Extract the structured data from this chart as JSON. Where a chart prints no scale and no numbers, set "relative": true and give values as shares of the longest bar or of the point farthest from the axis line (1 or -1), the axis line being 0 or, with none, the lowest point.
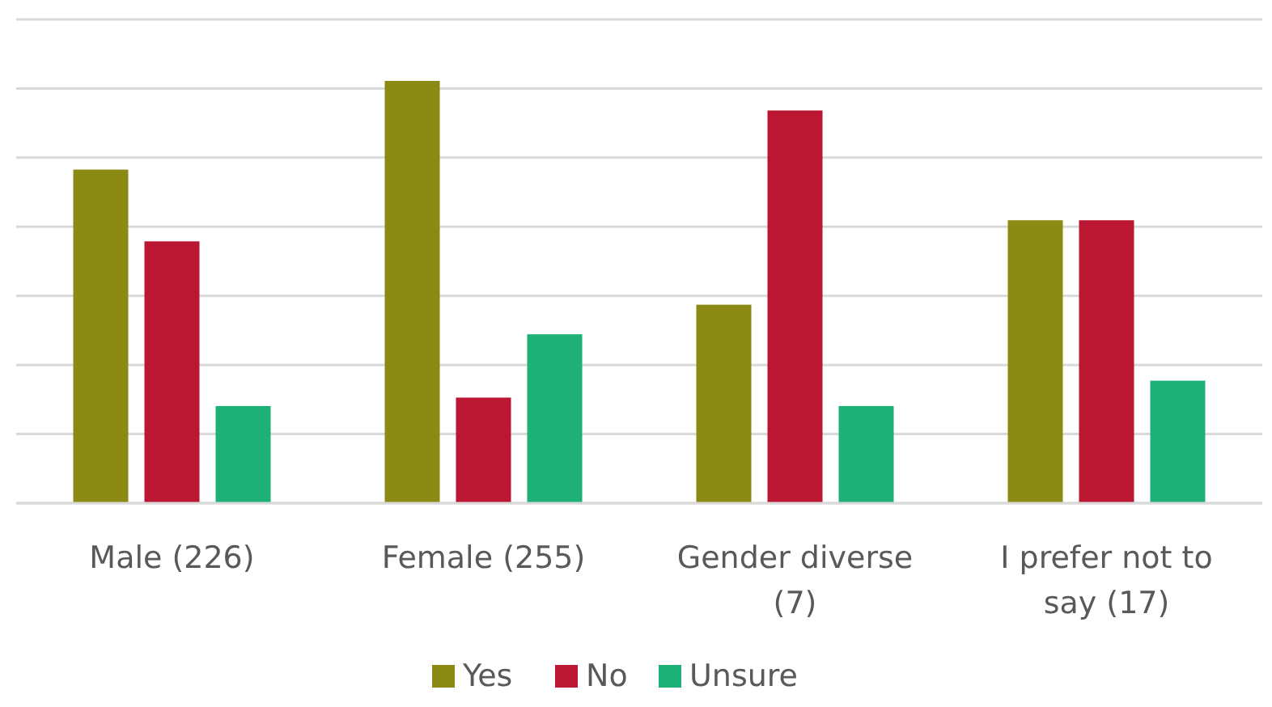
{
  "chart_data": {
    "type": "bar",
    "relative": true,
    "categories": [
      "Male (226)",
      "Female (255)",
      "Gender diverse (7)",
      "I prefer not to say (17)"
    ],
    "series": [
      {
        "name": "Yes",
        "color": "#8b8a14",
        "values": [
          0.79,
          1,
          0.47,
          0.67
        ]
      },
      {
        "name": "No",
        "color": "#bb1632",
        "values": [
          0.62,
          0.25,
          0.93,
          0.67
        ]
      },
      {
        "name": "Unsure",
        "color": "#1db077",
        "values": [
          0.23,
          0.4,
          0.23,
          0.29
        ]
      }
    ],
    "grid": "y",
    "legend": "bottom"
  }
}
